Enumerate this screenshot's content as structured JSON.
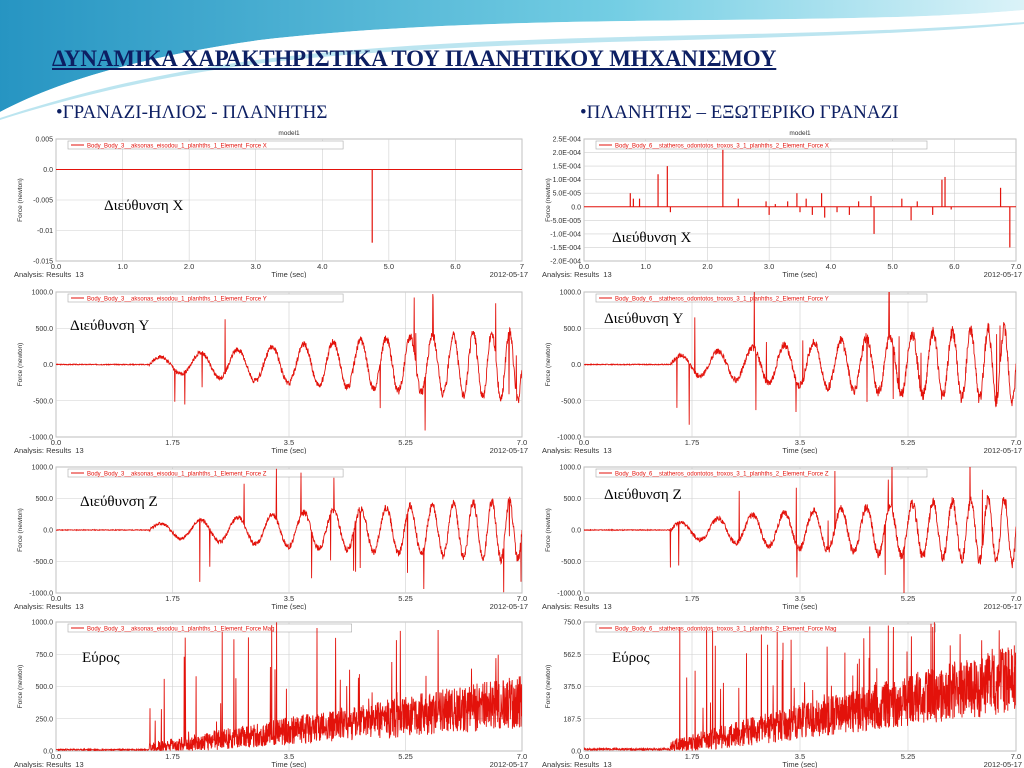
{
  "slide": {
    "title": "ΔΥΝΑΜΙΚΑ ΧΑΡΑΚΤΗΡΙΣΤΙΚΑ ΤΟΥ ΠΛΑΝΗΤΙΚΟΥ ΜΗΧΑΝΙΣΜΟΥ",
    "left_heading": "•ΓΡΑΝΑΖΙ-ΗΛΙΟΣ - ΠΛΑΝΗΤΗΣ",
    "right_heading": "•ΠΛΑΝΗΤΗΣ – ΕΞΩΤΕΡΙΚΟ ΓΡΑΝΑΖΙ",
    "colors": {
      "title": "#0d1f63",
      "trace": "#e3120b",
      "grid": "#cfcfcf",
      "swoosh": "#2aa5c9"
    }
  },
  "chart_data": [
    {
      "type": "line",
      "label": "Διεύθυνση X",
      "header": "model1",
      "legend": "Body_Body_3__aksonas_eisodou_1_planhths_1_Element_Force X",
      "ylabel": "Force (newton)",
      "xlabel": "Time (sec)",
      "analysis": "Analysis: Results_13",
      "date": "2012-05-17",
      "ylim": [
        -0.015,
        0.005
      ],
      "yticks": [
        "0.005",
        "0.0",
        "-0.005",
        "-0.01",
        "-0.015"
      ],
      "xlim": [
        0,
        7
      ],
      "xticks": [
        "0.0",
        "1.0",
        "2.0",
        "3.0",
        "4.0",
        "5.0",
        "6.0",
        "7"
      ],
      "series": [
        {
          "kind": "spikes",
          "baseline": 0,
          "spikes": [
            [
              4.75,
              -0.012
            ]
          ]
        }
      ]
    },
    {
      "type": "line",
      "label": "Διεύθυνση X",
      "header": "model1",
      "legend": "Body_Body_6__statheros_odontotos_troxos_3_1_planhths_2_Element_Force X",
      "ylabel": "Force (newton)",
      "xlabel": "Time (sec)",
      "analysis": "Analysis: Results_13",
      "date": "2012-05-17",
      "ylim": [
        -0.0002,
        0.00025
      ],
      "yticks": [
        "2.5E-004",
        "2.0E-004",
        "1.5E-004",
        "1.0E-004",
        "5.0E-005",
        "0.0",
        "-5.0E-005",
        "-1.0E-004",
        "-1.5E-004",
        "-2.0E-004"
      ],
      "xlim": [
        0,
        7
      ],
      "xticks": [
        "0.0",
        "1.0",
        "2.0",
        "3.0",
        "4.0",
        "5.0",
        "6.0",
        "7.0"
      ],
      "series": [
        {
          "kind": "spikes",
          "baseline": 0,
          "spikes": [
            [
              0.75,
              5e-05
            ],
            [
              0.8,
              3e-05
            ],
            [
              0.9,
              3e-05
            ],
            [
              1.2,
              0.00012
            ],
            [
              1.35,
              0.00015
            ],
            [
              1.4,
              -2e-05
            ],
            [
              2.25,
              0.00021
            ],
            [
              2.5,
              3e-05
            ],
            [
              2.95,
              2e-05
            ],
            [
              3.0,
              -3e-05
            ],
            [
              3.1,
              1e-05
            ],
            [
              3.3,
              2e-05
            ],
            [
              3.45,
              5e-05
            ],
            [
              3.5,
              -2e-05
            ],
            [
              3.6,
              3e-05
            ],
            [
              3.7,
              -3e-05
            ],
            [
              3.85,
              5e-05
            ],
            [
              3.9,
              -4e-05
            ],
            [
              4.1,
              -2e-05
            ],
            [
              4.3,
              -3e-05
            ],
            [
              4.45,
              2e-05
            ],
            [
              4.65,
              4e-05
            ],
            [
              4.7,
              -0.0001
            ],
            [
              5.15,
              3e-05
            ],
            [
              5.3,
              -5e-05
            ],
            [
              5.4,
              2e-05
            ],
            [
              5.65,
              -3e-05
            ],
            [
              5.8,
              0.0001
            ],
            [
              5.85,
              0.00011
            ],
            [
              5.95,
              -1e-05
            ],
            [
              6.75,
              7e-05
            ],
            [
              6.9,
              -0.00015
            ]
          ]
        }
      ]
    },
    {
      "type": "line",
      "label": "Διεύθυνση Y",
      "header": "",
      "legend": "Body_Body_3__aksonas_eisodou_1_planhths_1_Element_Force Y",
      "ylabel": "Force (newton)",
      "xlabel": "Time (sec)",
      "analysis": "Analysis: Results_13",
      "date": "2012-05-17",
      "ylim": [
        -1000,
        1000
      ],
      "yticks": [
        "1000.0",
        "500.0",
        "0.0",
        "-500.0",
        "-1000.0"
      ],
      "xlim": [
        0,
        7
      ],
      "xticks": [
        "0.0",
        "1.75",
        "3.5",
        "5.25",
        "7.0"
      ],
      "series": [
        {
          "kind": "oscillation",
          "quiet_until": 1.4,
          "period_start": 0.65,
          "period_end": 0.4,
          "amp_start": 80,
          "amp_end": 480,
          "noise": 110,
          "seed": 3
        }
      ]
    },
    {
      "type": "line",
      "label": "Διεύθυνση Y",
      "header": "",
      "legend": "Body_Body_6__statheros_odontotos_troxos_3_1_planhths_2_Element_Force Y",
      "ylabel": "Force (newton)",
      "xlabel": "Time (sec)",
      "analysis": "Analysis: Results_13",
      "date": "2012-05-17",
      "ylim": [
        -1000,
        1000
      ],
      "yticks": [
        "1000.0",
        "500.0",
        "0.0",
        "-500.0",
        "-1000.0"
      ],
      "xlim": [
        0,
        7
      ],
      "xticks": [
        "0.0",
        "1.75",
        "3.5",
        "5.25",
        "7.0"
      ],
      "series": [
        {
          "kind": "oscillation",
          "quiet_until": 1.4,
          "period_start": 0.65,
          "period_end": 0.4,
          "amp_start": 100,
          "amp_end": 520,
          "noise": 140,
          "seed": 7
        }
      ]
    },
    {
      "type": "line",
      "label": "Διεύθυνση Z",
      "header": "",
      "legend": "Body_Body_3__aksonas_eisodou_1_planhths_1_Element_Force Z",
      "ylabel": "Force (newton)",
      "xlabel": "Time (sec)",
      "analysis": "Analysis: Results_13",
      "date": "2012-05-17",
      "ylim": [
        -1000,
        1000
      ],
      "yticks": [
        "1000.0",
        "500.0",
        "0.0",
        "-500.0",
        "-1000.0"
      ],
      "xlim": [
        0,
        7
      ],
      "xticks": [
        "0.0",
        "1.75",
        "3.5",
        "5.25",
        "7.0"
      ],
      "series": [
        {
          "kind": "oscillation",
          "quiet_until": 1.4,
          "period_start": 0.65,
          "period_end": 0.4,
          "amp_start": 80,
          "amp_end": 480,
          "noise": 110,
          "seed": 11
        }
      ]
    },
    {
      "type": "line",
      "label": "Διεύθυνση Z",
      "header": "",
      "legend": "Body_Body_6__statheros_odontotos_troxos_3_1_planhths_2_Element_Force Z",
      "ylabel": "Force (newton)",
      "xlabel": "Time (sec)",
      "analysis": "Analysis: Results_13",
      "date": "2012-05-17",
      "ylim": [
        -1000,
        1000
      ],
      "yticks": [
        "1000.0",
        "500.0",
        "0.0",
        "-500.0",
        "-1000.0"
      ],
      "xlim": [
        0,
        7
      ],
      "xticks": [
        "0.0",
        "1.75",
        "3.5",
        "5.25",
        "7.0"
      ],
      "series": [
        {
          "kind": "oscillation",
          "quiet_until": 1.4,
          "period_start": 0.65,
          "period_end": 0.4,
          "amp_start": 100,
          "amp_end": 520,
          "noise": 140,
          "seed": 17
        }
      ]
    },
    {
      "type": "area",
      "label": "Εύρος",
      "header": "",
      "legend": "Body_Body_3__aksonas_eisodou_1_planhths_1_Element_Force Mag",
      "ylabel": "Force (newton)",
      "xlabel": "Time (sec)",
      "analysis": "Analysis: Results_13",
      "date": "2012-05-17",
      "ylim": [
        0,
        1000
      ],
      "yticks": [
        "1000.0",
        "750.0",
        "500.0",
        "250.0",
        "0.0"
      ],
      "xlim": [
        0,
        7
      ],
      "xticks": [
        "0.0",
        "1.75",
        "3.5",
        "5.25",
        "7.0"
      ],
      "series": [
        {
          "kind": "magnitude",
          "start": 1.4,
          "level_start": 20,
          "level_end": 380,
          "band": 200,
          "spike_max": 1000,
          "seed": 23
        }
      ]
    },
    {
      "type": "area",
      "label": "Εύρος",
      "header": "",
      "legend": "Body_Body_6__statheros_odontotos_troxos_3_1_planhths_2_Element_Force Mag",
      "ylabel": "Force (newton)",
      "xlabel": "Time (sec)",
      "analysis": "Analysis: Results_13",
      "date": "2012-05-17",
      "ylim": [
        0,
        750
      ],
      "yticks": [
        "750.0",
        "562.5",
        "375.0",
        "187.5",
        "0.0"
      ],
      "xlim": [
        0,
        7
      ],
      "xticks": [
        "0.0",
        "1.75",
        "3.5",
        "5.25",
        "7.0"
      ],
      "series": [
        {
          "kind": "magnitude",
          "start": 1.4,
          "level_start": 20,
          "level_end": 420,
          "band": 190,
          "spike_max": 750,
          "seed": 29
        }
      ]
    }
  ]
}
